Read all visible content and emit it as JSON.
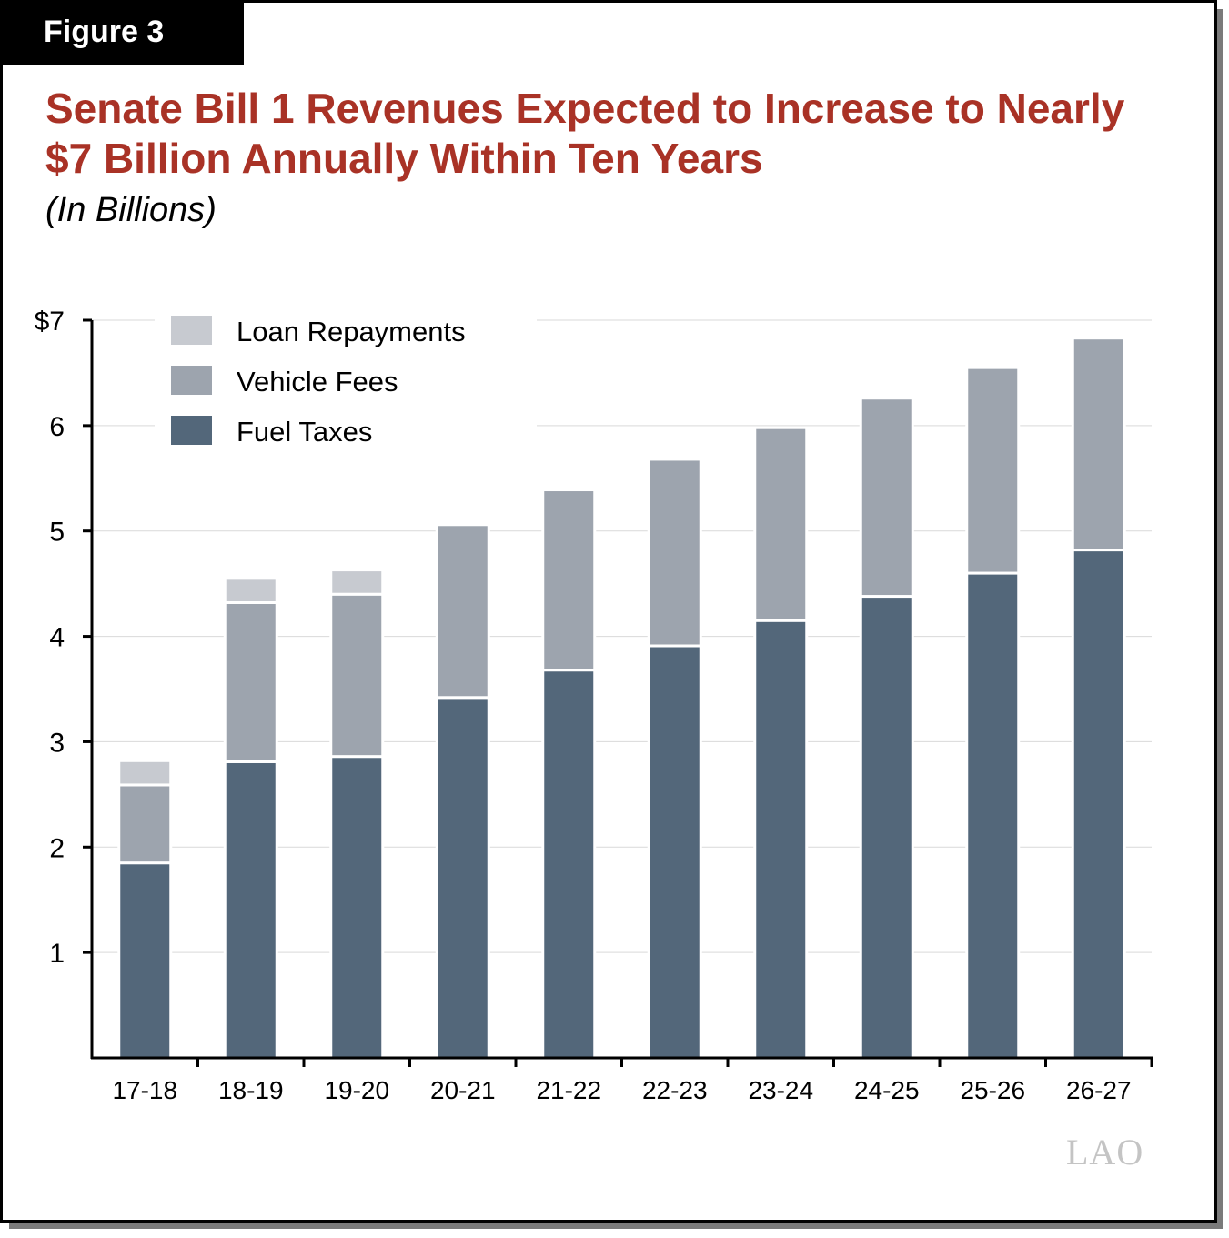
{
  "figure_label": "Figure 3",
  "title": "Senate Bill 1 Revenues Expected to Increase to Nearly $7 Billion Annually Within Ten Years",
  "subtitle": "(In Billions)",
  "logo_text": "LAO",
  "colors": {
    "title": "#a93226",
    "fuel_taxes": "#53677a",
    "vehicle_fees": "#9da4ae",
    "loan_repayments": "#c7cad0"
  },
  "chart_data": {
    "type": "bar",
    "stacked": true,
    "categories": [
      "17-18",
      "18-19",
      "19-20",
      "20-21",
      "21-22",
      "22-23",
      "23-24",
      "24-25",
      "25-26",
      "26-27"
    ],
    "series": [
      {
        "name": "Fuel Taxes",
        "color": "#53677a",
        "values": [
          1.85,
          2.81,
          2.86,
          3.42,
          3.68,
          3.91,
          4.15,
          4.38,
          4.6,
          4.82
        ]
      },
      {
        "name": "Vehicle Fees",
        "color": "#9da4ae",
        "values": [
          0.74,
          1.51,
          1.54,
          1.64,
          1.71,
          1.77,
          1.83,
          1.88,
          1.95,
          2.01
        ]
      },
      {
        "name": "Loan Repayments",
        "color": "#c7cad0",
        "values": [
          0.23,
          0.23,
          0.23,
          0,
          0,
          0,
          0,
          0,
          0,
          0
        ]
      }
    ],
    "y_tick_labels": [
      "1",
      "2",
      "3",
      "4",
      "5",
      "6",
      "$7"
    ],
    "y_tick_values": [
      1,
      2,
      3,
      4,
      5,
      6,
      7
    ],
    "ylim": [
      0,
      7
    ],
    "grid": true,
    "legend_position": "top-left",
    "legend_order": [
      "Loan Repayments",
      "Vehicle Fees",
      "Fuel Taxes"
    ]
  }
}
